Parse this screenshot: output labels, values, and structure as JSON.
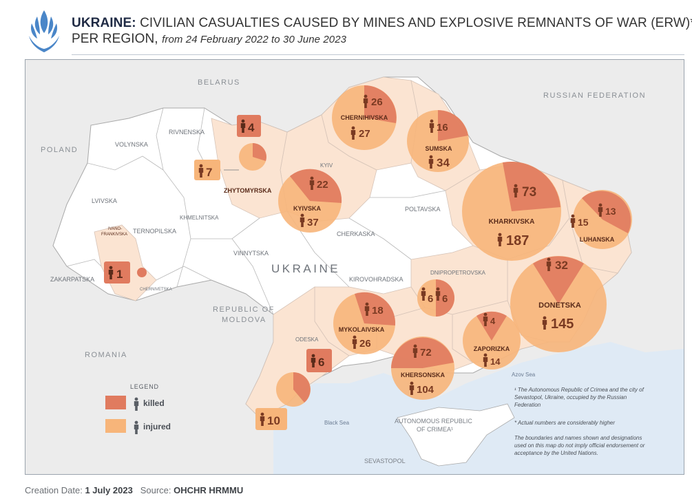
{
  "title": {
    "bold": "UKRAINE:",
    "main": "CIVILIAN CASUALTIES CAUSED BY MINES AND EXPLOSIVE REMNANTS OF WAR (ERW)*,",
    "line2": "PER REGION,",
    "period": "from 24 February 2022 to 30 June 2023"
  },
  "countries": {
    "belarus": "BELARUS",
    "russia": "RUSSIAN FEDERATION",
    "poland": "POLAND",
    "ukraine": "UKRAINE",
    "moldova_1": "REPUBLIC OF",
    "moldova_2": "MOLDOVA",
    "romania": "ROMANIA"
  },
  "sea_labels": {
    "azov": "Azov Sea",
    "black": "Black Sea",
    "crimea_1": "AUTONOMOUS REPUBLIC",
    "crimea_2": "OF CRIMEA¹",
    "sevastopol": "SEVASTOPOL"
  },
  "plain_regions": {
    "volynska": "VOLYNSKA",
    "rivnenska": "RIVNENSKA",
    "lvivska": "LVIVSKA",
    "ternopilska": "TERNOPILSKA",
    "khmelnitska": "KHMELNITSKA",
    "vinnytska": "VINNYTSKA",
    "zakarpatska": "ZAKARPATSKA",
    "chernivetska": "CHERNIVETSKA",
    "cherkaska": "CHERKASKA",
    "poltavska": "POLTAVSKA",
    "kirovohradska": "KIROVOHRADSKA",
    "dnipropetrovska": "DNIPROPETROVSKA",
    "odeska": "ODESKA",
    "kyiv": "KYIV"
  },
  "casualties": [
    {
      "region": "CHERNIHIVSKA",
      "killed": 26,
      "injured": 27
    },
    {
      "region": "SUMSKA",
      "killed": 16,
      "injured": 34
    },
    {
      "region": "KHARKIVSKA",
      "killed": 73,
      "injured": 187
    },
    {
      "region": "LUHANSKA",
      "killed": 13,
      "injured": 15
    },
    {
      "region": "DONETSKA",
      "killed": 32,
      "injured": 145
    },
    {
      "region": "ZAPORIZKA",
      "killed": 4,
      "injured": 14
    },
    {
      "region": "KHERSONSKA",
      "killed": 72,
      "injured": 104
    },
    {
      "region": "MYKOLAIVSKA",
      "killed": 18,
      "injured": 26
    },
    {
      "region": "DNIPROPETROVSKA",
      "killed": 6,
      "injured": 6
    },
    {
      "region": "KYIVSKA",
      "killed": 22,
      "injured": 37
    },
    {
      "region": "ZHYTOMYRSKA",
      "killed": 4,
      "injured": 7
    },
    {
      "region": "IVANO-FRANKIVSKA",
      "killed": 1,
      "injured": null
    },
    {
      "region": "ODESKA",
      "killed": 6,
      "injured": 10
    }
  ],
  "bubbles": {
    "chernihivska": {
      "name": "CHERNIHIVSKA",
      "killed": "26",
      "injured": "27"
    },
    "sumska": {
      "name": "SUMSKA",
      "killed": "16",
      "injured": "34"
    },
    "kharkivska": {
      "name": "KHARKIVSKA",
      "killed": "73",
      "injured": "187"
    },
    "luhanska": {
      "name": "LUHANSKA",
      "killed": "13",
      "injured": "15"
    },
    "donetska": {
      "name": "DONETSKA",
      "killed": "32",
      "injured": "145"
    },
    "zaporizka": {
      "name": "ZAPORIZKA",
      "killed": "4",
      "injured": "14"
    },
    "khersonska": {
      "name": "KHERSONSKA",
      "killed": "72",
      "injured": "104"
    },
    "mykolaivska": {
      "name": "MYKOLAIVSKA",
      "killed": "18",
      "injured": "26"
    },
    "dnipro": {
      "killed": "6",
      "injured": "6"
    },
    "kyivska": {
      "name": "KYIVSKA",
      "killed": "22",
      "injured": "37"
    },
    "zhytomyrska": {
      "name": "ZHYTOMYRSKA",
      "killed": "4",
      "injured": "7"
    },
    "ivano": {
      "name_1": "IVANO-",
      "name_2": "FRANKIVSKA",
      "killed": "1"
    },
    "odeska": {
      "killed": "6",
      "injured": "10"
    }
  },
  "legend": {
    "title": "LEGEND",
    "killed": "killed",
    "injured": "injured",
    "killed_color": "#e07b5f",
    "injured_color": "#f7b57a"
  },
  "notes": {
    "n1_1": "¹ The Autonomous Republic of Crimea and the city of",
    "n1_2": "Sevastopol, Ukraine, occupied by the Russian",
    "n1_3": "Federation",
    "n2": "* Actual numbers are considerably higher",
    "n3_1": "The boundaries and names shown and designations",
    "n3_2": "used on this map do not imply official endorsement or",
    "n3_3": "acceptance by the United Nations."
  },
  "footer": {
    "date_label": "Creation Date:",
    "date_value": "1 July 2023",
    "source_label": "Source:",
    "source_value": "OHCHR HRMMU"
  },
  "colors": {
    "killed": "#e07b5f",
    "injured": "#f7b57a",
    "affected_region": "#fbe4d2",
    "unaffected_region": "#ffffff",
    "neighbor": "#ececec",
    "sea": "#dfeaf5"
  }
}
